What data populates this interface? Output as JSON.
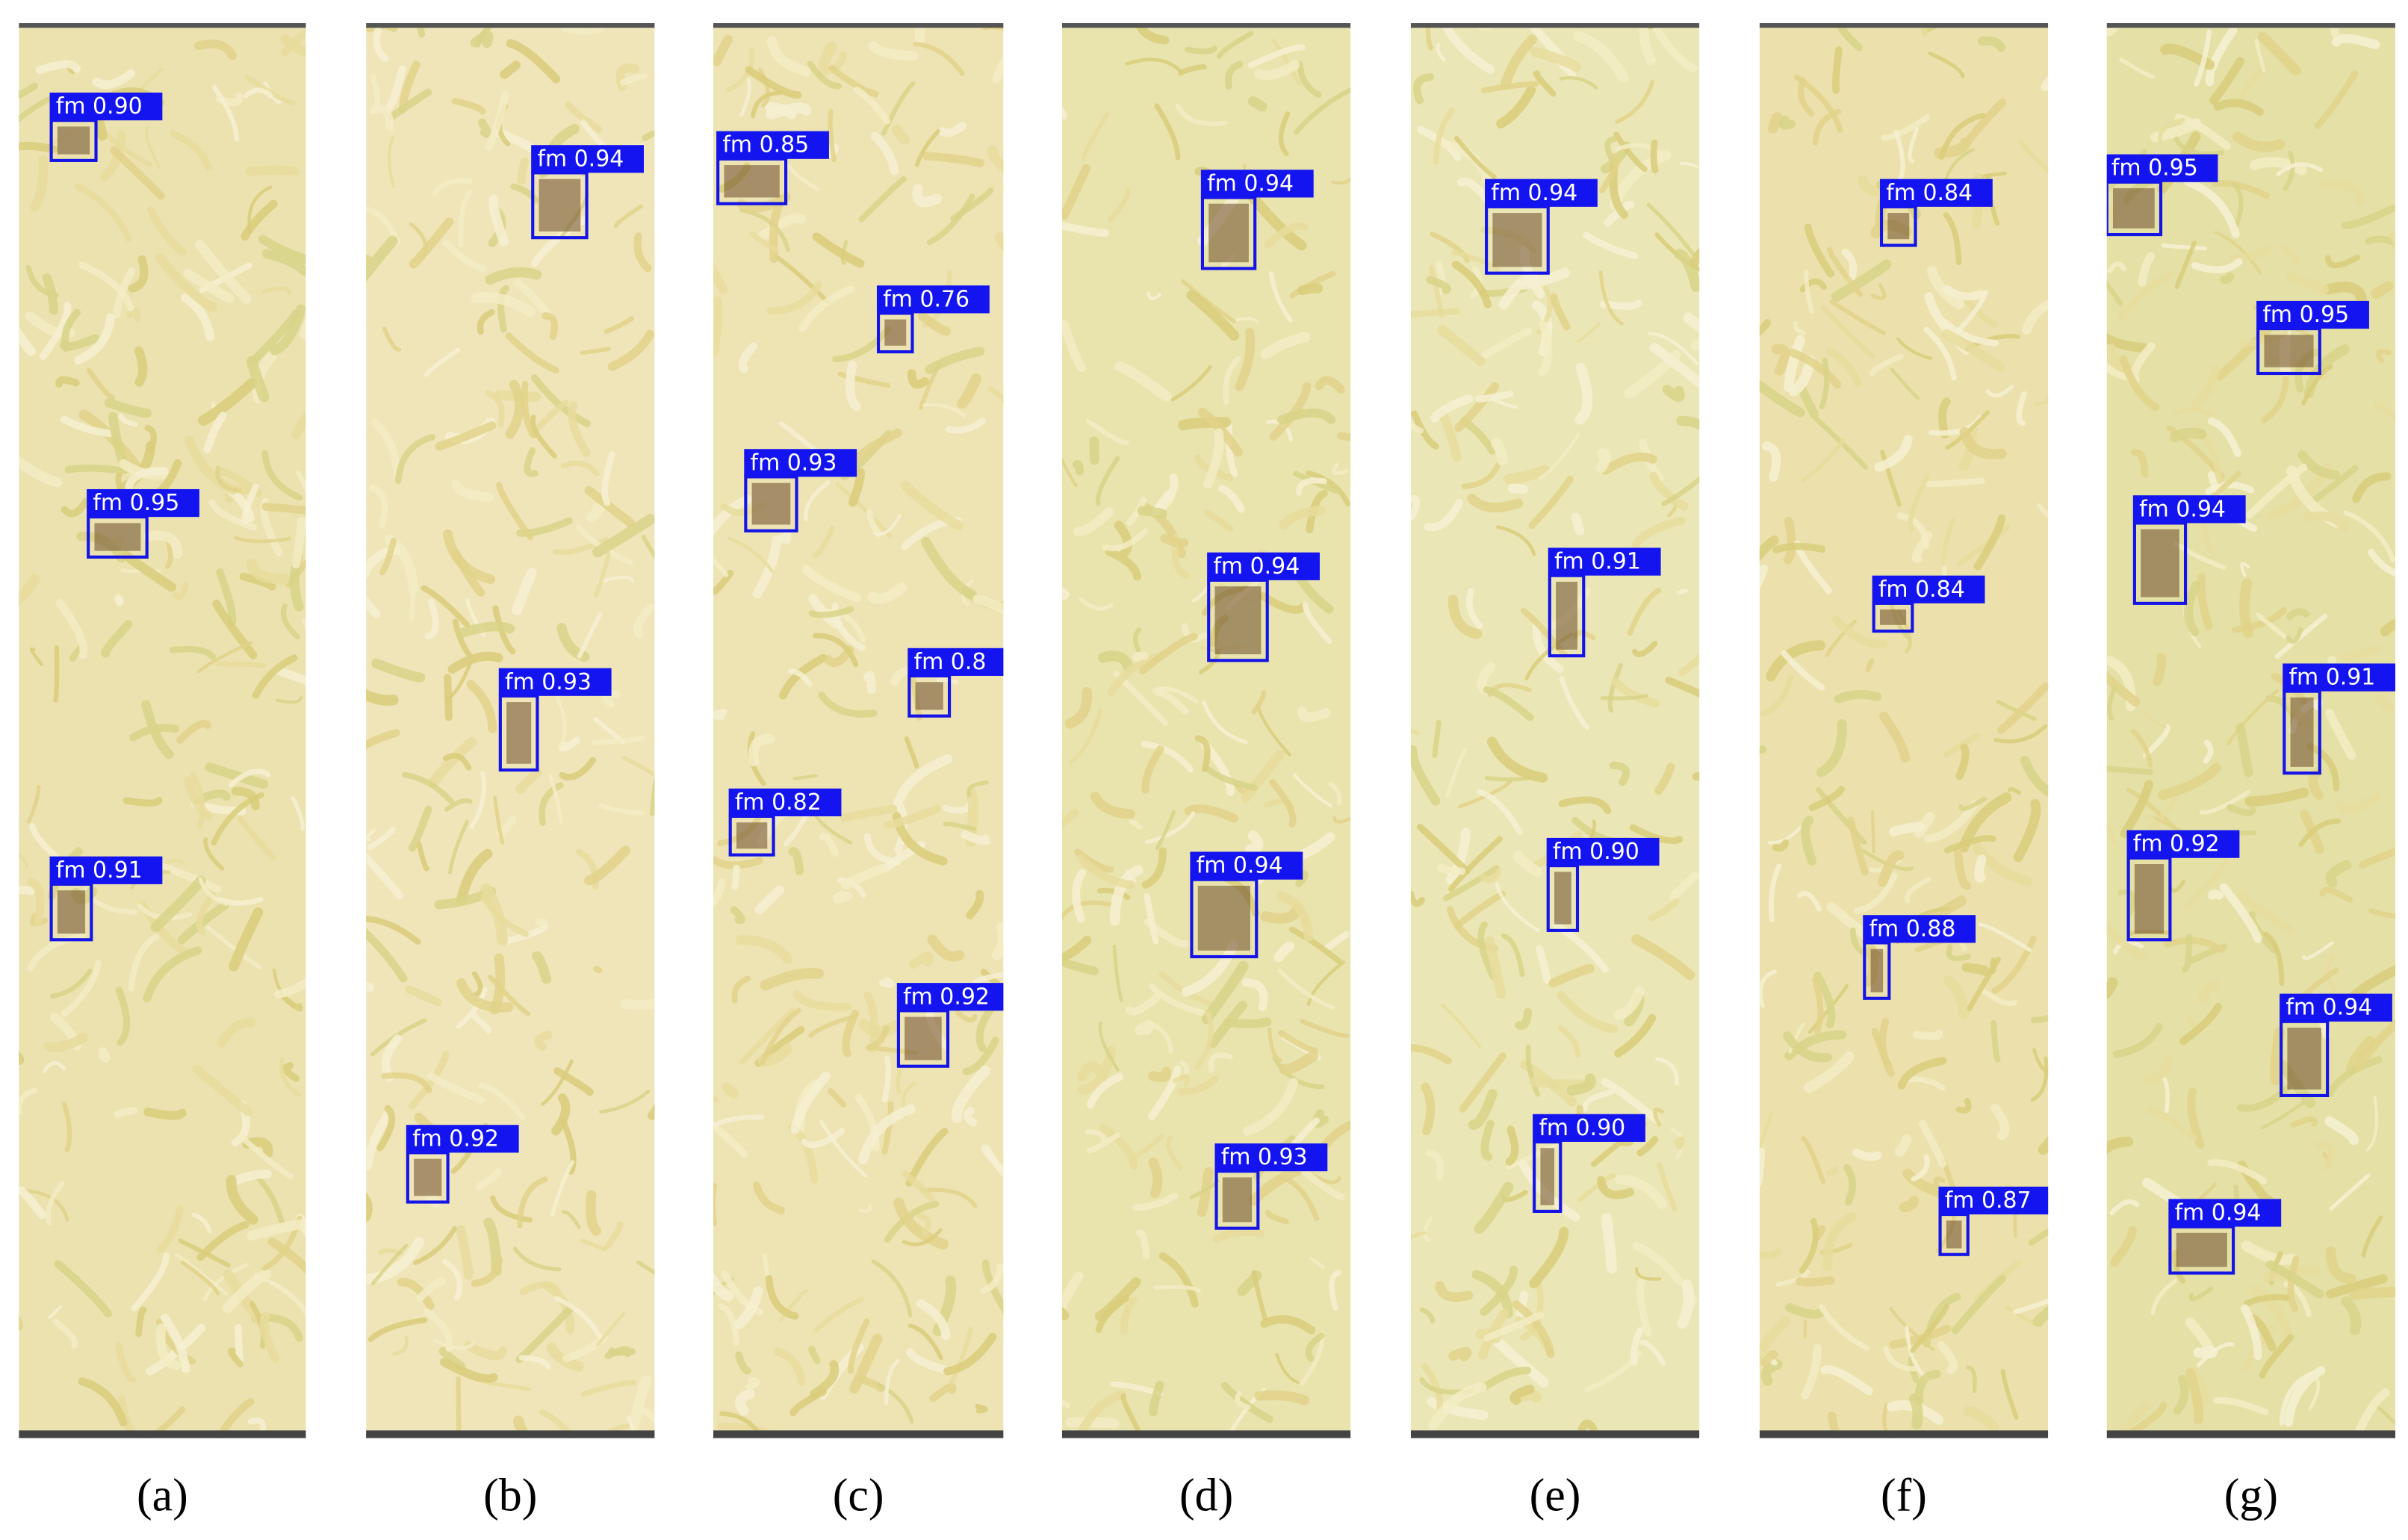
{
  "panels": [
    {
      "label": "(a)",
      "detections": [
        "fm 0.90",
        "fm 0.95",
        "fm 0.91"
      ]
    },
    {
      "label": "(b)",
      "detections": [
        "fm 0.94",
        "fm 0.93",
        "fm 0.92"
      ]
    },
    {
      "label": "(c)",
      "detections": [
        "fm 0.85",
        "fm 0.76",
        "fm 0.93",
        "fm 0.8",
        "fm 0.82",
        "fm 0.92"
      ]
    },
    {
      "label": "(d)",
      "detections": [
        "fm 0.94",
        "fm 0.94",
        "fm 0.94",
        "fm 0.93"
      ]
    },
    {
      "label": "(e)",
      "detections": [
        "fm 0.94",
        "fm 0.91",
        "fm 0.90",
        "fm 0.90"
      ]
    },
    {
      "label": "(f)",
      "detections": [
        "fm 0.84",
        "fm 0.84",
        "fm 0.88",
        "fm 0.87"
      ]
    },
    {
      "label": "(g)",
      "detections": [
        "fm 0.95",
        "fm 0.95",
        "fm 0.94",
        "fm 0.91",
        "fm 0.92",
        "fm 0.94",
        "fm 0.94"
      ]
    }
  ]
}
